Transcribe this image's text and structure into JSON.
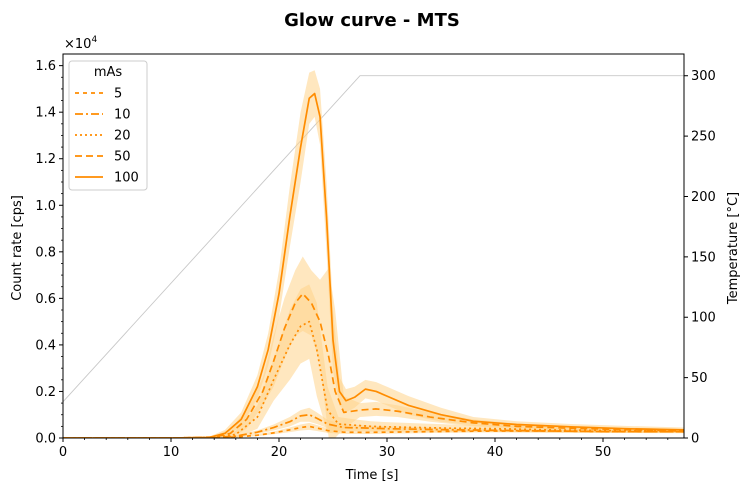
{
  "chart_data": {
    "type": "line",
    "title": "Glow curve - MTS",
    "xlabel": "Time [s]",
    "ylabel": "Count rate [cps]",
    "y2label": "Temperature [°C]",
    "y_multiplier_label": "×10",
    "y_multiplier_exp": "4",
    "xlim": [
      0,
      57.5
    ],
    "ylim": [
      0,
      1.65
    ],
    "y2lim": [
      0,
      318
    ],
    "x_ticks": [
      0,
      10,
      20,
      30,
      40,
      50
    ],
    "x_tick_labels": [
      "0",
      "10",
      "20",
      "30",
      "40",
      "50"
    ],
    "y_ticks": [
      0.0,
      0.2,
      0.4,
      0.6,
      0.8,
      1.0,
      1.2,
      1.4,
      1.6
    ],
    "y_tick_labels": [
      "0.0",
      "0.2",
      "0.4",
      "0.6",
      "0.8",
      "1.0",
      "1.2",
      "1.4",
      "1.6"
    ],
    "y2_ticks": [
      0,
      50,
      100,
      150,
      200,
      250,
      300
    ],
    "y2_tick_labels": [
      "0",
      "50",
      "100",
      "150",
      "200",
      "250",
      "300"
    ],
    "legend": {
      "title": "mAs",
      "placement": "top-left"
    },
    "color": "#ff8c00",
    "band_color": "#ffd48a",
    "temperature_color": "#c8c8c8",
    "temperature": {
      "x": [
        0,
        27.5,
        57.5
      ],
      "y": [
        30,
        300,
        300
      ]
    },
    "series": [
      {
        "name": "5",
        "dash": "4,4",
        "x": [
          0,
          10,
          14,
          16,
          18,
          19.5,
          21,
          22,
          22.8,
          23.5,
          24.5,
          26,
          28,
          30,
          35,
          40,
          45,
          50,
          57.5
        ],
        "values": [
          0,
          0,
          0.001,
          0.004,
          0.012,
          0.022,
          0.035,
          0.045,
          0.05,
          0.043,
          0.032,
          0.025,
          0.024,
          0.025,
          0.028,
          0.03,
          0.03,
          0.028,
          0.027
        ],
        "band": [
          0,
          0,
          0.002,
          0.006,
          0.016,
          0.028,
          0.045,
          0.058,
          0.065,
          0.056,
          0.042,
          0.033,
          0.031,
          0.032,
          0.034,
          0.036,
          0.036,
          0.034,
          0.033
        ]
      },
      {
        "name": "10",
        "dash": "8,3,2,3",
        "x": [
          0,
          10,
          14,
          16,
          18,
          19.5,
          21,
          22,
          22.8,
          23.5,
          24.5,
          26,
          28,
          30,
          35,
          40,
          45,
          50,
          57.5
        ],
        "values": [
          0,
          0,
          0.002,
          0.008,
          0.025,
          0.045,
          0.07,
          0.095,
          0.1,
          0.085,
          0.06,
          0.045,
          0.043,
          0.04,
          0.036,
          0.033,
          0.03,
          0.028,
          0.027
        ],
        "band": [
          0,
          0,
          0.003,
          0.012,
          0.033,
          0.058,
          0.09,
          0.12,
          0.13,
          0.11,
          0.078,
          0.058,
          0.054,
          0.05,
          0.044,
          0.04,
          0.037,
          0.034,
          0.033
        ]
      },
      {
        "name": "20",
        "dash": "2,3",
        "x": [
          0,
          10,
          14,
          16,
          18,
          19.5,
          21,
          22,
          22.8,
          23.5,
          24.5,
          25.5,
          27,
          28.5,
          30,
          33,
          36,
          40,
          45,
          50,
          57.5
        ],
        "values": [
          0,
          0,
          0.003,
          0.015,
          0.09,
          0.25,
          0.4,
          0.48,
          0.5,
          0.38,
          0.12,
          0.06,
          0.055,
          0.05,
          0.048,
          0.045,
          0.042,
          0.04,
          0.035,
          0.032,
          0.03
        ],
        "band": [
          0,
          0,
          0.005,
          0.03,
          0.14,
          0.34,
          0.55,
          0.64,
          0.66,
          0.58,
          0.22,
          0.09,
          0.08,
          0.072,
          0.068,
          0.063,
          0.058,
          0.054,
          0.047,
          0.042,
          0.038
        ]
      },
      {
        "name": "50",
        "dash": "7,4",
        "x": [
          0,
          10,
          14,
          15.5,
          17,
          18.5,
          19.5,
          20.5,
          21.5,
          22.2,
          23,
          23.8,
          24.6,
          25.2,
          26,
          27.5,
          29,
          31,
          34,
          38,
          42,
          47,
          52,
          57.5
        ],
        "values": [
          0,
          0,
          0.004,
          0.02,
          0.08,
          0.2,
          0.33,
          0.47,
          0.58,
          0.62,
          0.58,
          0.5,
          0.35,
          0.2,
          0.11,
          0.12,
          0.125,
          0.115,
          0.09,
          0.065,
          0.05,
          0.042,
          0.036,
          0.03
        ],
        "band": [
          0,
          0,
          0.008,
          0.04,
          0.12,
          0.26,
          0.44,
          0.6,
          0.72,
          0.78,
          0.72,
          0.68,
          0.73,
          0.55,
          0.18,
          0.15,
          0.155,
          0.14,
          0.11,
          0.08,
          0.062,
          0.052,
          0.045,
          0.038
        ]
      },
      {
        "name": "100",
        "dash": "",
        "x": [
          0,
          10,
          13.5,
          15,
          16.5,
          18,
          19,
          20,
          21,
          22,
          22.8,
          23.3,
          23.8,
          24.4,
          25,
          25.6,
          26.2,
          27,
          28,
          29,
          30,
          32,
          35,
          38,
          42,
          47,
          52,
          57.5
        ],
        "values": [
          0,
          0,
          0.002,
          0.02,
          0.08,
          0.22,
          0.38,
          0.62,
          0.95,
          1.25,
          1.46,
          1.48,
          1.38,
          0.95,
          0.42,
          0.2,
          0.16,
          0.175,
          0.21,
          0.2,
          0.18,
          0.14,
          0.1,
          0.072,
          0.058,
          0.048,
          0.04,
          0.035
        ],
        "band": [
          0,
          0,
          0.005,
          0.035,
          0.11,
          0.27,
          0.45,
          0.72,
          1.08,
          1.4,
          1.57,
          1.58,
          1.5,
          1.1,
          0.55,
          0.26,
          0.21,
          0.22,
          0.25,
          0.24,
          0.22,
          0.18,
          0.13,
          0.09,
          0.072,
          0.06,
          0.052,
          0.045
        ]
      }
    ]
  }
}
